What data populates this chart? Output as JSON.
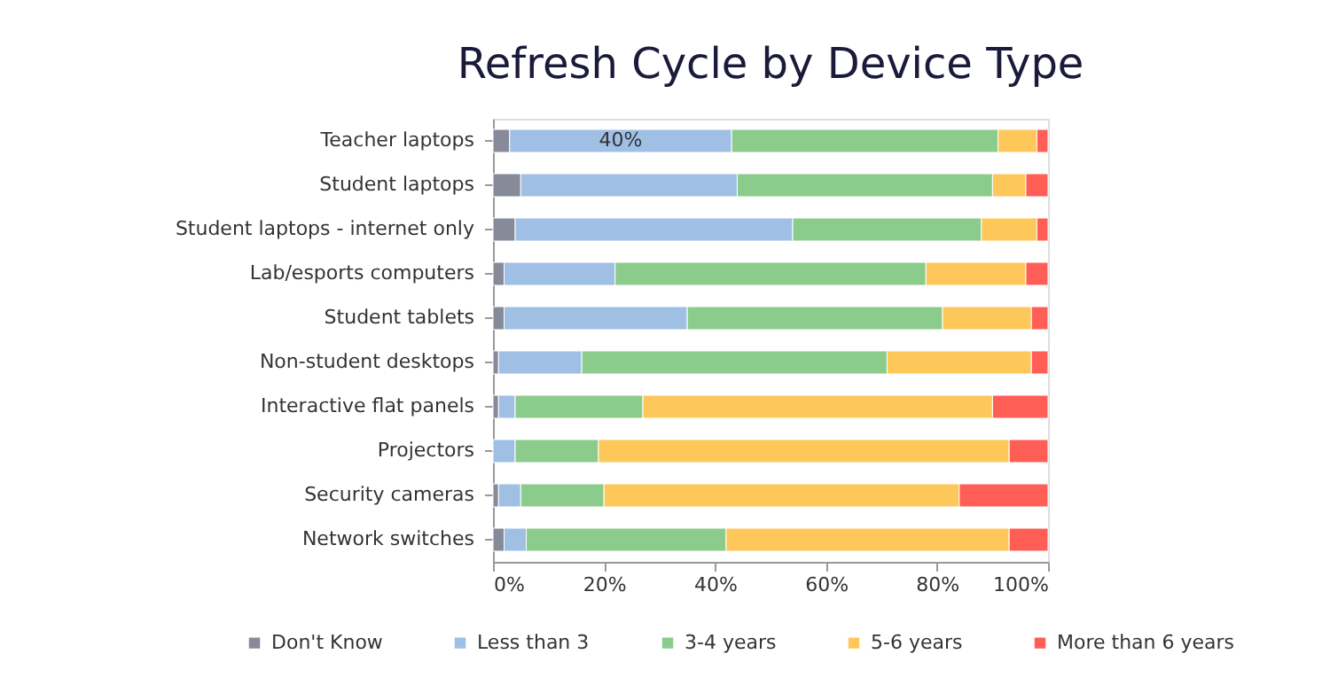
{
  "chart_data": {
    "type": "bar",
    "orientation": "horizontal",
    "stacked": true,
    "title": "Refresh Cycle by Device Type",
    "categories": [
      "Teacher laptops",
      "Student laptops",
      "Student laptops - internet only",
      "Lab/esports computers",
      "Student tablets",
      "Non-student desktops",
      "Interactive flat panels",
      "Projectors",
      "Security cameras",
      "Network switches"
    ],
    "series": [
      {
        "name": "Don't Know",
        "color": "#878a99",
        "values": [
          3,
          5,
          4,
          2,
          2,
          1,
          1,
          0,
          1,
          2
        ]
      },
      {
        "name": "Less than 3",
        "color": "#9fbfe5",
        "values": [
          40,
          39,
          50,
          20,
          33,
          15,
          3,
          4,
          4,
          4
        ],
        "value_labels": [
          "40%",
          null,
          null,
          null,
          null,
          null,
          null,
          null,
          null,
          null
        ]
      },
      {
        "name": "3-4 years",
        "color": "#8bcb8b",
        "values": [
          48,
          46,
          34,
          56,
          46,
          55,
          23,
          15,
          15,
          36
        ]
      },
      {
        "name": "5-6 years",
        "color": "#fec75a",
        "values": [
          7,
          6,
          10,
          18,
          16,
          26,
          63,
          74,
          64,
          51
        ]
      },
      {
        "name": "More than 6 years",
        "color": "#ff5e57",
        "values": [
          2,
          4,
          2,
          4,
          3,
          3,
          10,
          7,
          16,
          7
        ]
      }
    ],
    "xlim": [
      0,
      100
    ],
    "xticks": [
      {
        "value": 0,
        "label": "0%"
      },
      {
        "value": 20,
        "label": "20%"
      },
      {
        "value": 40,
        "label": "40%"
      },
      {
        "value": 60,
        "label": "60%"
      },
      {
        "value": 80,
        "label": "80%"
      },
      {
        "value": 100,
        "label": "100%"
      }
    ],
    "grid": false,
    "legend": "bottom"
  }
}
